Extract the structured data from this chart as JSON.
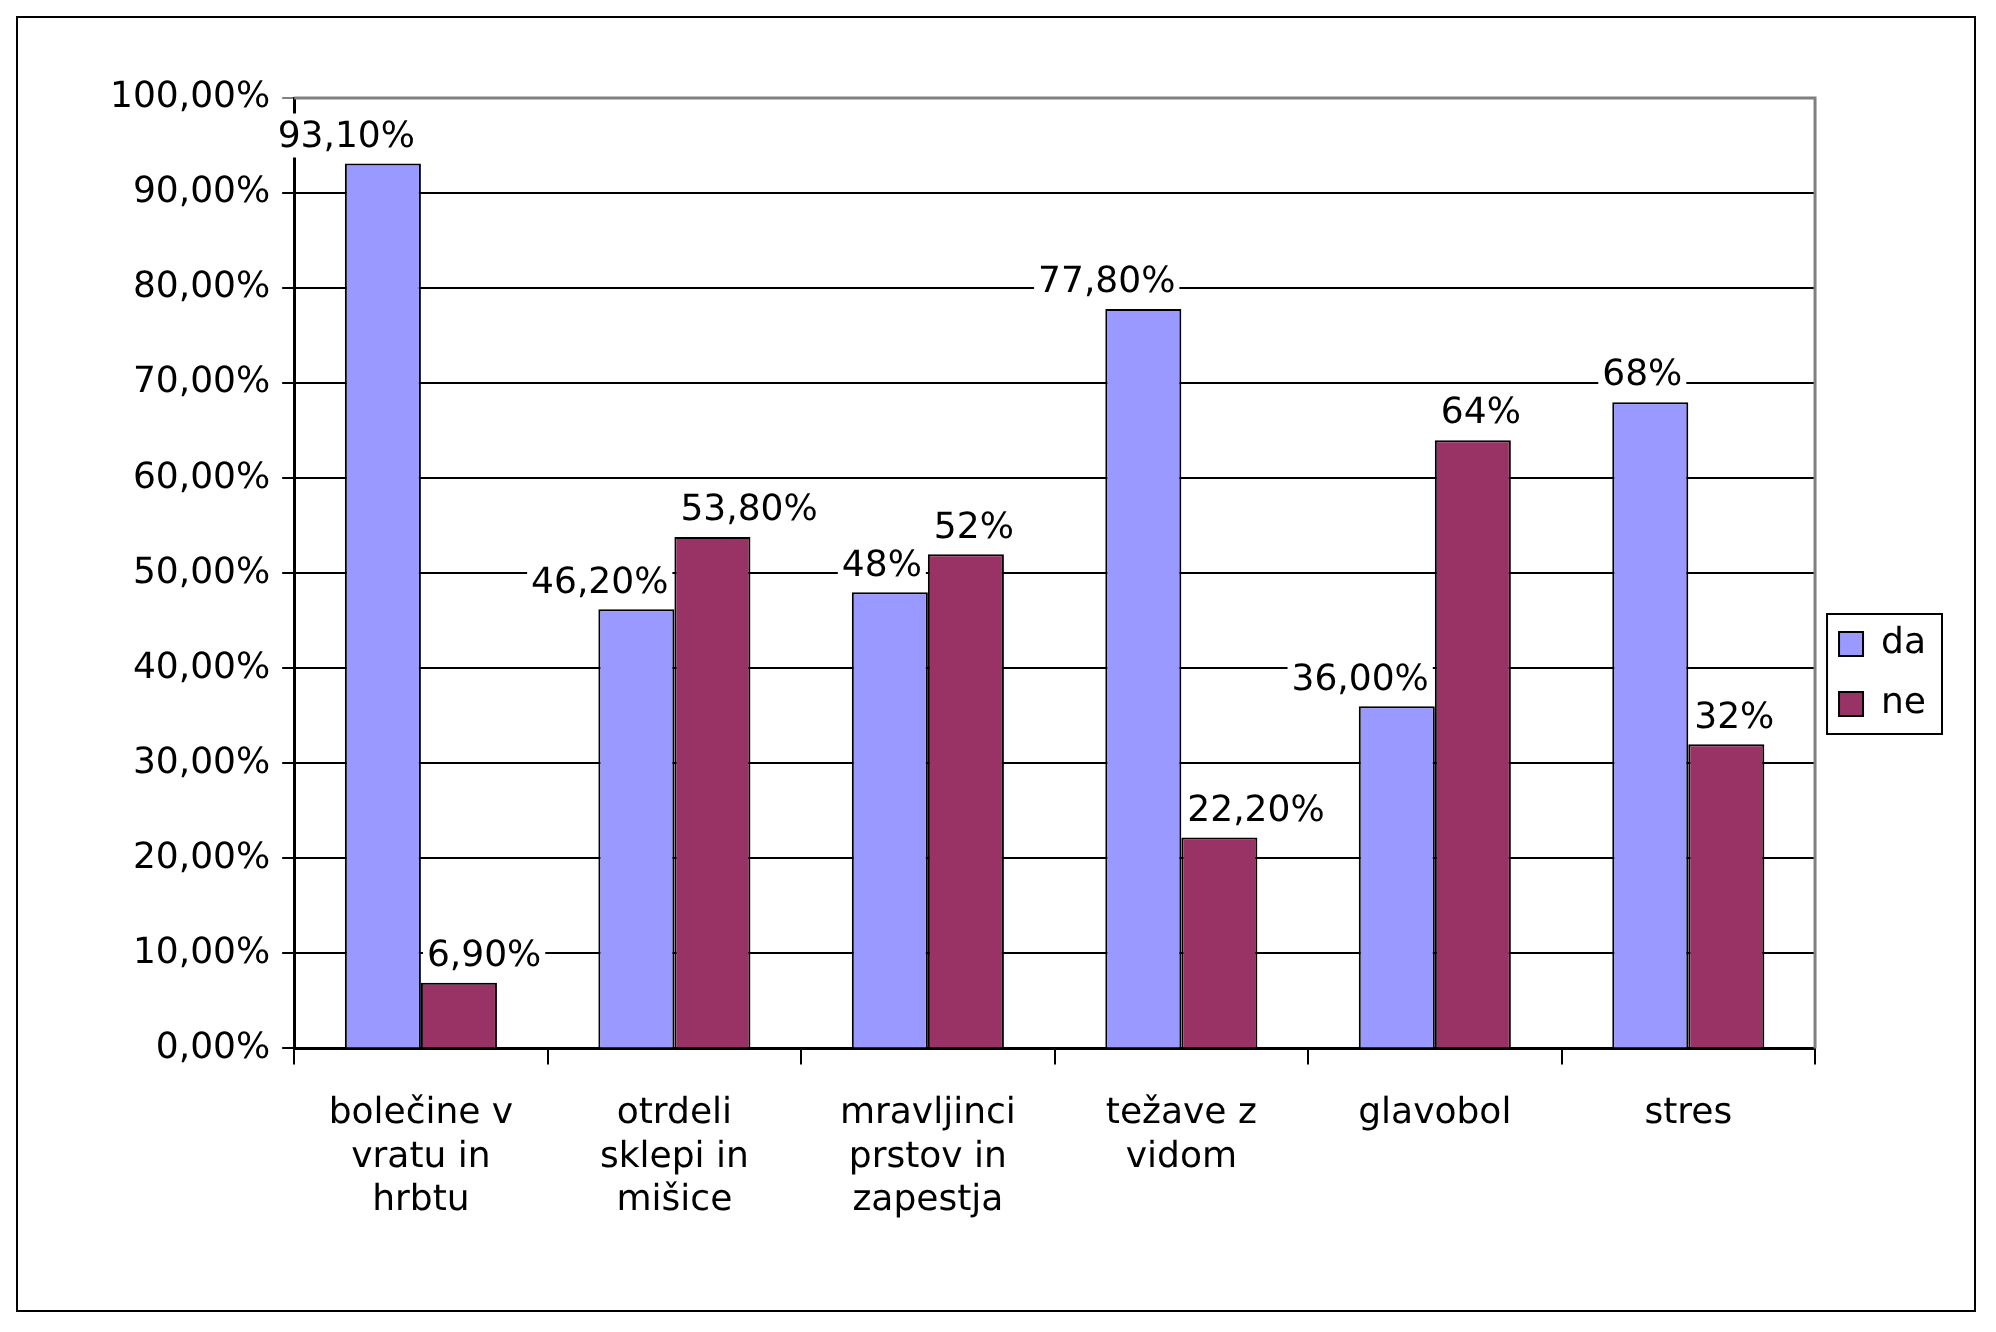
{
  "chart_data": {
    "type": "bar",
    "categories": [
      "bolečine v vratu in hrbtu",
      "otrdeli sklepi in mišice",
      "mravljinci prstov in zapestja",
      "težave z vidom",
      "glavobol",
      "stres"
    ],
    "series": [
      {
        "name": "da",
        "color": "#9999ff",
        "values": [
          93.1,
          46.2,
          48,
          77.8,
          36,
          68
        ],
        "value_labels": [
          "93,10%",
          "46,20%",
          "48%",
          "77,80%",
          "36,00%",
          "68%"
        ]
      },
      {
        "name": "ne",
        "color": "#993366",
        "values": [
          6.9,
          53.8,
          52,
          22.2,
          64,
          32
        ],
        "value_labels": [
          "6,90%",
          "53,80%",
          "52%",
          "22,20%",
          "64%",
          "32%"
        ]
      }
    ],
    "ylim": [
      0,
      100
    ],
    "yticks": [
      {
        "value": 0,
        "label": "0,00%"
      },
      {
        "value": 10,
        "label": "10,00%"
      },
      {
        "value": 20,
        "label": "20,00%"
      },
      {
        "value": 30,
        "label": "30,00%"
      },
      {
        "value": 40,
        "label": "40,00%"
      },
      {
        "value": 50,
        "label": "50,00%"
      },
      {
        "value": 60,
        "label": "60,00%"
      },
      {
        "value": 70,
        "label": "70,00%"
      },
      {
        "value": 80,
        "label": "80,00%"
      },
      {
        "value": 90,
        "label": "90,00%"
      },
      {
        "value": 100,
        "label": "100,00%"
      }
    ],
    "grid": "y",
    "legend": "right"
  }
}
